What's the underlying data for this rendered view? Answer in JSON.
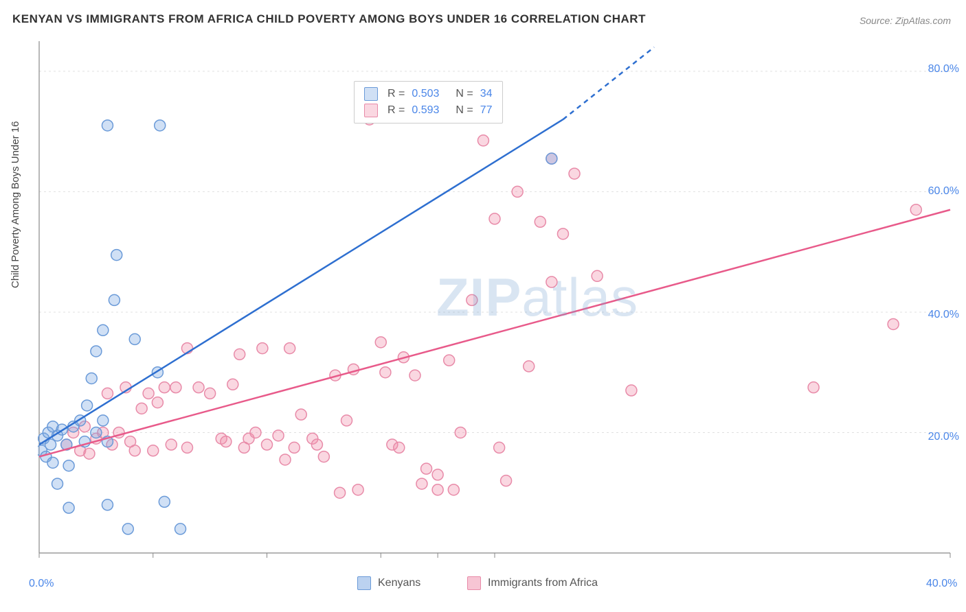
{
  "title": "KENYAN VS IMMIGRANTS FROM AFRICA CHILD POVERTY AMONG BOYS UNDER 16 CORRELATION CHART",
  "source": "Source: ZipAtlas.com",
  "y_axis_label": "Child Poverty Among Boys Under 16",
  "watermark_bold": "ZIP",
  "watermark_light": "atlas",
  "chart": {
    "type": "scatter",
    "xlim": [
      0,
      40
    ],
    "ylim": [
      0,
      85
    ],
    "x_ticks": [
      0,
      5,
      10,
      15,
      17.5,
      20,
      40
    ],
    "x_tick_labels": {
      "0": "0.0%",
      "40": "40.0%"
    },
    "y_ticks": [
      20,
      40,
      60,
      80
    ],
    "y_tick_labels": {
      "20": "20.0%",
      "40": "40.0%",
      "60": "60.0%",
      "80": "80.0%"
    },
    "grid_color": "#e0e0e0",
    "axis_color": "#888888",
    "background_color": "#ffffff",
    "marker_radius": 8,
    "marker_stroke_width": 1.5,
    "line_width": 2.5,
    "series": [
      {
        "name": "Kenyans",
        "color_fill": "rgba(120, 165, 225, 0.35)",
        "color_stroke": "#6a9ad8",
        "line_color": "#2e6fd0",
        "R": "0.503",
        "N": "34",
        "regression": {
          "x1": 0,
          "y1": 18,
          "x2": 23,
          "y2": 72,
          "dash_from_x": 23,
          "dash_to_x": 27,
          "dash_to_y": 84
        },
        "points": [
          [
            0.1,
            17
          ],
          [
            0.2,
            19
          ],
          [
            0.3,
            16
          ],
          [
            0.4,
            20
          ],
          [
            0.5,
            18
          ],
          [
            0.6,
            15
          ],
          [
            0.8,
            11.5
          ],
          [
            0.6,
            21
          ],
          [
            0.8,
            19.5
          ],
          [
            1.0,
            20.5
          ],
          [
            1.2,
            18
          ],
          [
            1.3,
            14.5
          ],
          [
            1.5,
            21
          ],
          [
            1.8,
            22
          ],
          [
            2.1,
            24.5
          ],
          [
            2.0,
            18.5
          ],
          [
            2.3,
            29
          ],
          [
            2.5,
            33.5
          ],
          [
            2.8,
            37
          ],
          [
            3.3,
            42
          ],
          [
            3.4,
            49.5
          ],
          [
            3.0,
            71
          ],
          [
            5.3,
            71
          ],
          [
            1.3,
            7.5
          ],
          [
            3.0,
            8
          ],
          [
            5.5,
            8.5
          ],
          [
            3.9,
            4
          ],
          [
            6.2,
            4
          ],
          [
            2.8,
            22
          ],
          [
            2.5,
            20
          ],
          [
            3.0,
            18.5
          ],
          [
            4.2,
            35.5
          ],
          [
            5.2,
            30
          ],
          [
            22.5,
            65.5
          ]
        ]
      },
      {
        "name": "Immigrants from Africa",
        "color_fill": "rgba(240, 140, 170, 0.35)",
        "color_stroke": "#e88aa8",
        "line_color": "#e85a8a",
        "R": "0.593",
        "N": "77",
        "regression": {
          "x1": 0,
          "y1": 16,
          "x2": 40,
          "y2": 57
        },
        "points": [
          [
            1.2,
            18
          ],
          [
            1.5,
            20
          ],
          [
            1.8,
            17
          ],
          [
            2.0,
            21
          ],
          [
            2.2,
            16.5
          ],
          [
            2.5,
            19
          ],
          [
            2.8,
            20
          ],
          [
            3.0,
            26.5
          ],
          [
            3.2,
            18
          ],
          [
            3.5,
            20
          ],
          [
            3.8,
            27.5
          ],
          [
            4.0,
            18.5
          ],
          [
            4.2,
            17
          ],
          [
            4.5,
            24
          ],
          [
            4.8,
            26.5
          ],
          [
            5.0,
            17
          ],
          [
            5.2,
            25
          ],
          [
            5.5,
            27.5
          ],
          [
            5.8,
            18
          ],
          [
            6.0,
            27.5
          ],
          [
            6.5,
            34
          ],
          [
            7.0,
            27.5
          ],
          [
            7.5,
            26.5
          ],
          [
            8.0,
            19
          ],
          [
            8.2,
            18.5
          ],
          [
            8.5,
            28
          ],
          [
            8.8,
            33
          ],
          [
            9.0,
            17.5
          ],
          [
            9.2,
            19
          ],
          [
            9.5,
            20
          ],
          [
            10.0,
            18
          ],
          [
            10.5,
            19.5
          ],
          [
            10.8,
            15.5
          ],
          [
            11.0,
            34
          ],
          [
            11.2,
            17.5
          ],
          [
            11.5,
            23
          ],
          [
            12.0,
            19
          ],
          [
            12.2,
            18
          ],
          [
            12.5,
            16
          ],
          [
            13.0,
            29.5
          ],
          [
            13.2,
            10
          ],
          [
            13.5,
            22
          ],
          [
            13.8,
            30.5
          ],
          [
            14.5,
            72
          ],
          [
            15.0,
            35
          ],
          [
            15.2,
            30
          ],
          [
            15.5,
            18
          ],
          [
            15.8,
            17.5
          ],
          [
            16.0,
            32.5
          ],
          [
            16.5,
            29.5
          ],
          [
            17.0,
            14
          ],
          [
            17.5,
            13
          ],
          [
            18.0,
            32
          ],
          [
            18.2,
            10.5
          ],
          [
            18.5,
            20
          ],
          [
            19.0,
            42
          ],
          [
            19.5,
            68.5
          ],
          [
            20.0,
            55.5
          ],
          [
            20.2,
            17.5
          ],
          [
            20.5,
            12
          ],
          [
            21.0,
            60
          ],
          [
            21.5,
            31
          ],
          [
            22.0,
            55
          ],
          [
            22.5,
            45
          ],
          [
            23.0,
            53
          ],
          [
            23.5,
            63
          ],
          [
            24.5,
            46
          ],
          [
            26.0,
            27
          ],
          [
            34.0,
            27.5
          ],
          [
            37.5,
            38
          ],
          [
            38.5,
            57
          ],
          [
            22.5,
            65.5
          ],
          [
            14.0,
            10.5
          ],
          [
            16.8,
            11.5
          ],
          [
            17.5,
            10.5
          ],
          [
            6.5,
            17.5
          ],
          [
            9.8,
            34
          ]
        ]
      }
    ]
  },
  "legend_bottom": [
    {
      "label": "Kenyans",
      "fill": "rgba(120, 165, 225, 0.5)",
      "stroke": "#6a9ad8"
    },
    {
      "label": "Immigrants from Africa",
      "fill": "rgba(240, 140, 170, 0.5)",
      "stroke": "#e88aa8"
    }
  ]
}
